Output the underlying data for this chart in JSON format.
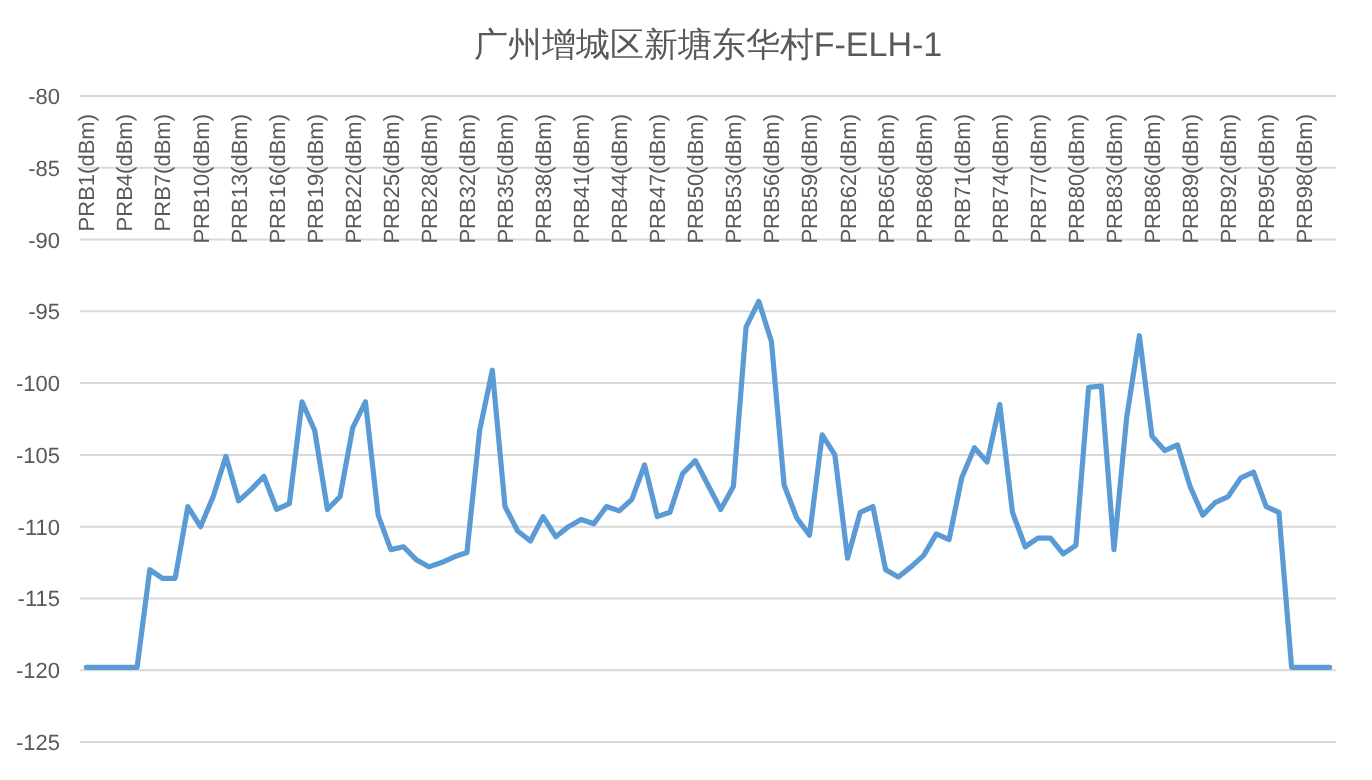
{
  "chart_data": {
    "type": "line",
    "title": "广州增城区新塘东华村F-ELH-1",
    "categories": [
      "PRB1(dBm)",
      null,
      null,
      "PRB4(dBm)",
      null,
      null,
      "PRB7(dBm)",
      null,
      null,
      "PRB10(dBm)",
      null,
      null,
      "PRB13(dBm)",
      null,
      null,
      "PRB16(dBm)",
      null,
      null,
      "PRB19(dBm)",
      null,
      null,
      "PRB22(dBm)",
      null,
      null,
      "PRB25(dBm)",
      null,
      null,
      "PRB28(dBm)",
      null,
      null,
      "PRB32(dBm)",
      null,
      null,
      "PRB35(dBm)",
      null,
      null,
      "PRB38(dBm)",
      null,
      null,
      "PRB41(dBm)",
      null,
      null,
      "PRB44(dBm)",
      null,
      null,
      "PRB47(dBm)",
      null,
      null,
      "PRB50(dBm)",
      null,
      null,
      "PRB53(dBm)",
      null,
      null,
      "PRB56(dBm)",
      null,
      null,
      "PRB59(dBm)",
      null,
      null,
      "PRB62(dBm)",
      null,
      null,
      "PRB65(dBm)",
      null,
      null,
      "PRB68(dBm)",
      null,
      null,
      "PRB71(dBm)",
      null,
      null,
      "PRB74(dBm)",
      null,
      null,
      "PRB77(dBm)",
      null,
      null,
      "PRB80(dBm)",
      null,
      null,
      "PRB83(dBm)",
      null,
      null,
      "PRB86(dBm)",
      null,
      null,
      "PRB89(dBm)",
      null,
      null,
      "PRB92(dBm)",
      null,
      null,
      "PRB95(dBm)",
      null,
      null,
      "PRB98(dBm)",
      null,
      null
    ],
    "series": [
      {
        "color": "#5b9bd5",
        "values": [
          -119.8,
          -119.8,
          -119.8,
          -119.8,
          -119.8,
          -113.0,
          -113.6,
          -113.6,
          -108.6,
          -110.0,
          -107.9,
          -105.1,
          -108.2,
          -107.4,
          -106.5,
          -108.8,
          -108.4,
          -101.3,
          -103.3,
          -108.8,
          -107.9,
          -103.1,
          -101.3,
          -109.2,
          -111.6,
          -111.4,
          -112.3,
          -112.8,
          -112.5,
          -112.1,
          -111.8,
          -103.3,
          -99.1,
          -108.6,
          -110.3,
          -111.0,
          -109.3,
          -110.7,
          -110.0,
          -109.5,
          -109.8,
          -108.6,
          -108.9,
          -108.1,
          -105.7,
          -109.3,
          -109.0,
          -106.3,
          -105.4,
          -107.1,
          -108.8,
          -107.2,
          -96.1,
          -94.3,
          -97.1,
          -107.1,
          -109.4,
          -110.6,
          -103.6,
          -105.0,
          -112.2,
          -109.0,
          -108.6,
          -113.0,
          -113.5,
          -112.8,
          -112.0,
          -110.5,
          -110.9,
          -106.6,
          -104.5,
          -105.5,
          -101.5,
          -109.0,
          -111.4,
          -110.8,
          -110.8,
          -111.9,
          -111.3,
          -100.3,
          -100.2,
          -111.6,
          -102.4,
          -96.7,
          -103.7,
          -104.7,
          -104.3,
          -107.2,
          -109.2,
          -108.3,
          -107.9,
          -106.6,
          -106.2,
          -108.6,
          -109.0,
          -119.8,
          -119.8,
          -119.8,
          -119.8
        ]
      }
    ],
    "ylim": [
      -125,
      -80
    ],
    "yticks": [
      -125,
      -120,
      -115,
      -110,
      -105,
      -100,
      -95,
      -90,
      -85,
      -80
    ],
    "grid": "y"
  }
}
